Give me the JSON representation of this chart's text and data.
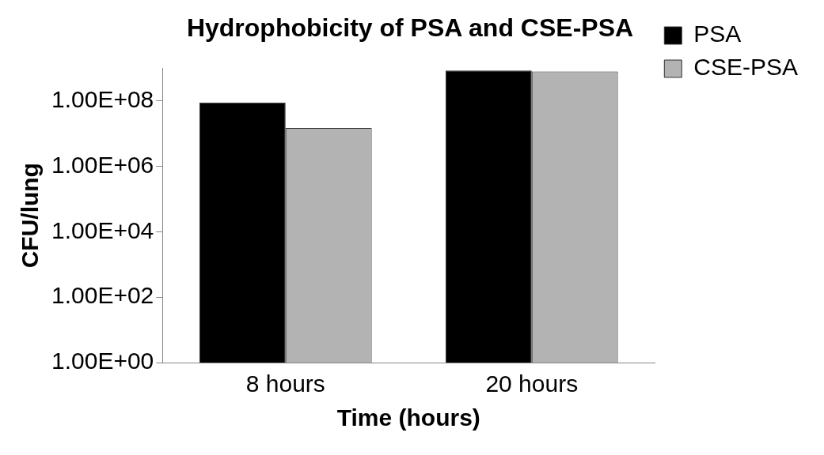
{
  "chart_data": {
    "type": "bar",
    "title": "Hydrophobicity of PSA and CSE-PSA",
    "xlabel": "Time (hours)",
    "ylabel": "CFU/lung",
    "categories": [
      "8 hours",
      "20 hours"
    ],
    "series": [
      {
        "name": "PSA",
        "color": "#000000",
        "values": [
          90000000,
          850000000
        ]
      },
      {
        "name": "CSE-PSA",
        "color": "#b3b3b3",
        "values": [
          15000000,
          800000000
        ]
      }
    ],
    "log": true,
    "ylim": [
      1,
      1000000000
    ],
    "yticks": [
      {
        "value": 1,
        "label": "1.00E+00"
      },
      {
        "value": 100,
        "label": "1.00E+02"
      },
      {
        "value": 10000,
        "label": "1.00E+04"
      },
      {
        "value": 1000000,
        "label": "1.00E+06"
      },
      {
        "value": 100000000,
        "label": "1.00E+08"
      }
    ],
    "grid": false,
    "legend": "right"
  }
}
